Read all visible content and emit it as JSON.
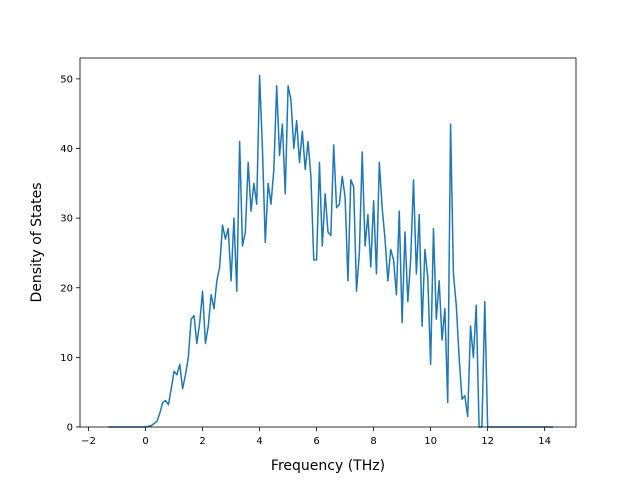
{
  "chart_data": {
    "type": "line",
    "title": "",
    "xlabel": "Frequency (THz)",
    "ylabel": "Density of States",
    "xlim": [
      -2.3,
      15.1
    ],
    "ylim": [
      0,
      53
    ],
    "xticks": [
      -2,
      0,
      2,
      4,
      6,
      8,
      10,
      12,
      14
    ],
    "yticks": [
      0,
      10,
      20,
      30,
      40,
      50
    ],
    "xtick_labels": [
      "−2",
      "0",
      "2",
      "4",
      "6",
      "8",
      "10",
      "12",
      "14"
    ],
    "ytick_labels": [
      "0",
      "10",
      "20",
      "30",
      "40",
      "50"
    ],
    "grid": false,
    "line_color": "#1f77b4",
    "series": [
      {
        "x": [
          -1.3,
          0.0,
          0.2,
          0.4,
          0.5,
          0.6,
          0.7,
          0.8,
          0.9,
          1.0,
          1.1,
          1.2,
          1.3,
          1.4,
          1.5,
          1.6,
          1.7,
          1.8,
          1.9,
          2.0,
          2.1,
          2.2,
          2.3,
          2.4,
          2.5,
          2.6,
          2.7,
          2.8,
          2.9,
          3.0,
          3.1,
          3.2,
          3.3,
          3.4,
          3.5,
          3.6,
          3.7,
          3.8,
          3.9,
          4.0,
          4.1,
          4.2,
          4.3,
          4.4,
          4.5,
          4.6,
          4.7,
          4.8,
          4.9,
          5.0,
          5.1,
          5.2,
          5.3,
          5.4,
          5.5,
          5.6,
          5.7,
          5.8,
          5.9,
          6.0,
          6.1,
          6.2,
          6.3,
          6.4,
          6.5,
          6.6,
          6.7,
          6.8,
          6.9,
          7.0,
          7.1,
          7.2,
          7.3,
          7.4,
          7.5,
          7.6,
          7.7,
          7.8,
          7.9,
          8.0,
          8.1,
          8.2,
          8.3,
          8.4,
          8.5,
          8.6,
          8.7,
          8.8,
          8.9,
          9.0,
          9.1,
          9.2,
          9.3,
          9.4,
          9.5,
          9.6,
          9.7,
          9.8,
          9.9,
          10.0,
          10.1,
          10.2,
          10.3,
          10.4,
          10.5,
          10.6,
          10.7,
          10.8,
          10.9,
          11.0,
          11.1,
          11.2,
          11.3,
          11.4,
          11.5,
          11.6,
          11.7,
          11.8,
          11.9,
          12.0,
          12.1,
          12.2,
          12.3,
          12.4,
          12.5,
          12.6,
          13.0,
          14.3
        ],
        "y": [
          0,
          0,
          0.2,
          0.8,
          2.0,
          3.5,
          3.8,
          3.2,
          5.5,
          8.0,
          7.5,
          9.0,
          5.5,
          7.5,
          10.0,
          15.5,
          16.0,
          12.0,
          15.0,
          19.5,
          12.0,
          14.5,
          19.0,
          17.0,
          21.0,
          23.0,
          29.0,
          27.0,
          28.5,
          21.0,
          30.0,
          19.5,
          41.0,
          26.0,
          28.0,
          38.0,
          31.0,
          35.0,
          32.0,
          50.5,
          40.0,
          26.5,
          35.0,
          32.0,
          37.0,
          49.0,
          39.0,
          43.5,
          33.5,
          49.0,
          47.0,
          40.0,
          44.0,
          38.0,
          42.5,
          37.0,
          41.0,
          36.0,
          24.0,
          24.0,
          38.0,
          26.0,
          33.5,
          28.0,
          27.5,
          40.5,
          31.5,
          32.0,
          36.0,
          33.0,
          21.0,
          35.5,
          34.5,
          19.5,
          25.0,
          39.5,
          26.0,
          30.5,
          23.0,
          32.5,
          22.0,
          38.0,
          31.5,
          27.0,
          21.0,
          25.5,
          24.0,
          19.0,
          31.0,
          15.0,
          28.0,
          18.0,
          24.0,
          35.5,
          22.0,
          30.5,
          14.5,
          25.5,
          21.5,
          9.0,
          28.5,
          15.5,
          21.0,
          12.5,
          17.0,
          3.5,
          43.5,
          22.0,
          17.5,
          10.0,
          4.0,
          4.5,
          1.5,
          14.5,
          10.0,
          17.5,
          0,
          0,
          18.0,
          0,
          0,
          0,
          0,
          0,
          0,
          0,
          0,
          0
        ]
      }
    ]
  }
}
